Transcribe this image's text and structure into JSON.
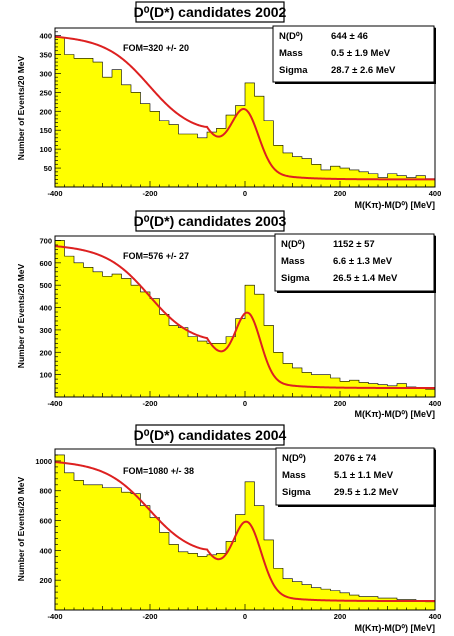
{
  "chart_data": [
    {
      "type": "bar",
      "title": "D⁰(D*) candidates 2002",
      "xlabel": "M(Kπ)-M(D⁰) [MeV]",
      "ylabel": "Number of Events/20 MeV",
      "xlim": [
        -400,
        400
      ],
      "ylim": [
        0,
        420
      ],
      "xticks": [
        "-400",
        "-200",
        "0",
        "200",
        "400"
      ],
      "yticks": [
        50,
        100,
        150,
        200,
        250,
        300,
        350,
        400
      ],
      "fom": "FOM=320 +/- 20",
      "stats": [
        {
          "label": "N(D⁰)",
          "value": "644 ± 46"
        },
        {
          "label": "Mass",
          "value": "0.5 ± 1.9 MeV"
        },
        {
          "label": "Sigma",
          "value": "28.7 ± 2.6 MeV"
        }
      ],
      "bin_width": 20,
      "x": [
        -400,
        -380,
        -360,
        -340,
        -320,
        -300,
        -280,
        -260,
        -240,
        -220,
        -200,
        -180,
        -160,
        -140,
        -120,
        -100,
        -80,
        -60,
        -40,
        -20,
        0,
        20,
        40,
        60,
        80,
        100,
        120,
        140,
        160,
        180,
        200,
        220,
        240,
        260,
        280,
        300,
        320,
        340,
        360,
        380
      ],
      "values": [
        395,
        350,
        340,
        340,
        330,
        290,
        310,
        270,
        250,
        220,
        200,
        175,
        165,
        140,
        140,
        130,
        145,
        155,
        190,
        215,
        275,
        240,
        175,
        110,
        90,
        80,
        75,
        60,
        45,
        55,
        50,
        45,
        40,
        35,
        25,
        35,
        30,
        25,
        30,
        22
      ],
      "fit": {
        "amplitude": 150,
        "mean": 0.5,
        "sigma": 28.7,
        "bkg_start": 400,
        "bkg_mid": 140,
        "bkg_end": 20
      }
    },
    {
      "type": "bar",
      "title": "D⁰(D*) candidates 2003",
      "xlabel": "M(Kπ)-M(D⁰) [MeV]",
      "ylabel": "Number of Events/20 MeV",
      "xlim": [
        -400,
        400
      ],
      "ylim": [
        0,
        720
      ],
      "xticks": [
        "-400",
        "-200",
        "0",
        "200",
        "400"
      ],
      "yticks": [
        100,
        200,
        300,
        400,
        500,
        600,
        700
      ],
      "fom": "FOM=576 +/- 27",
      "stats": [
        {
          "label": "N(D⁰)",
          "value": "1152 ± 57"
        },
        {
          "label": "Mass",
          "value": "6.6 ± 1.3 MeV"
        },
        {
          "label": "Sigma",
          "value": "26.5 ± 1.4 MeV"
        }
      ],
      "bin_width": 20,
      "x": [
        -400,
        -380,
        -360,
        -340,
        -320,
        -300,
        -280,
        -260,
        -240,
        -220,
        -200,
        -180,
        -160,
        -140,
        -120,
        -100,
        -80,
        -60,
        -40,
        -20,
        0,
        20,
        40,
        60,
        80,
        100,
        120,
        140,
        160,
        180,
        200,
        220,
        240,
        260,
        280,
        300,
        320,
        340,
        360,
        380
      ],
      "values": [
        700,
        630,
        600,
        580,
        560,
        540,
        550,
        530,
        500,
        470,
        440,
        370,
        320,
        310,
        270,
        250,
        240,
        240,
        270,
        350,
        500,
        460,
        320,
        200,
        150,
        130,
        110,
        100,
        100,
        85,
        70,
        75,
        65,
        60,
        55,
        50,
        60,
        45,
        40,
        35
      ],
      "fit": {
        "amplitude": 285,
        "mean": 6.6,
        "sigma": 26.5,
        "bkg_start": 680,
        "bkg_mid": 235,
        "bkg_end": 40
      }
    },
    {
      "type": "bar",
      "title": "D⁰(D*) candidates 2004",
      "xlabel": "M(Kπ)-M(D⁰) [MeV]",
      "ylabel": "Number of Events/20 MeV",
      "xlim": [
        -400,
        400
      ],
      "ylim": [
        0,
        1080
      ],
      "xticks": [
        "-400",
        "-200",
        "0",
        "200",
        "400"
      ],
      "yticks": [
        200,
        400,
        600,
        800,
        1000
      ],
      "fom": "FOM=1080 +/- 38",
      "stats": [
        {
          "label": "N(D⁰)",
          "value": "2076 ± 74"
        },
        {
          "label": "Mass",
          "value": "5.1 ± 1.1 MeV"
        },
        {
          "label": "Sigma",
          "value": "29.5 ± 1.2 MeV"
        }
      ],
      "bin_width": 20,
      "x": [
        -400,
        -380,
        -360,
        -340,
        -320,
        -300,
        -280,
        -260,
        -240,
        -220,
        -200,
        -180,
        -160,
        -140,
        -120,
        -100,
        -80,
        -60,
        -40,
        -20,
        0,
        20,
        40,
        60,
        80,
        100,
        120,
        140,
        160,
        180,
        200,
        220,
        240,
        260,
        280,
        300,
        320,
        340,
        360,
        380
      ],
      "values": [
        1040,
        920,
        870,
        840,
        840,
        820,
        820,
        790,
        780,
        700,
        620,
        520,
        440,
        390,
        380,
        360,
        370,
        380,
        460,
        640,
        860,
        700,
        470,
        280,
        210,
        190,
        170,
        150,
        140,
        130,
        115,
        100,
        90,
        90,
        80,
        80,
        70,
        70,
        60,
        55
      ],
      "fit": {
        "amplitude": 450,
        "mean": 5.1,
        "sigma": 29.5,
        "bkg_start": 1000,
        "bkg_mid": 360,
        "bkg_end": 60
      }
    }
  ]
}
